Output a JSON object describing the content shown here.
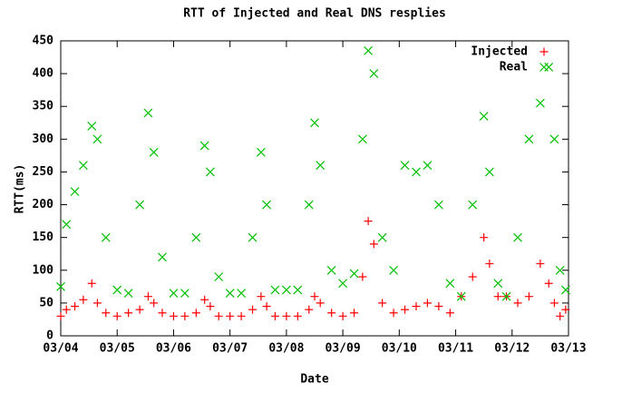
{
  "chart_data": {
    "type": "scatter",
    "title": "RTT of Injected and Real DNS resplies",
    "x_label": "Date",
    "y_label": "RTT(ms)",
    "x": [
      0,
      0.1,
      0.25,
      0.4,
      0.55,
      0.65,
      0.8,
      1.0,
      1.2,
      1.4,
      1.55,
      1.65,
      1.8,
      2.0,
      2.2,
      2.4,
      2.55,
      2.65,
      2.8,
      3.0,
      3.2,
      3.4,
      3.55,
      3.65,
      3.8,
      4.0,
      4.2,
      4.4,
      4.5,
      4.6,
      4.8,
      5.0,
      5.2,
      5.35,
      5.45,
      5.55,
      5.7,
      5.9,
      6.1,
      6.3,
      6.5,
      6.7,
      6.9,
      7.1,
      7.3,
      7.5,
      7.6,
      7.75,
      7.9,
      8.1,
      8.3,
      8.5,
      8.65,
      8.75,
      8.85,
      8.95
    ],
    "series": [
      {
        "name": "Injected",
        "color": "#ff0000",
        "marker": "plus",
        "values": [
          30,
          40,
          45,
          55,
          80,
          50,
          35,
          30,
          35,
          40,
          60,
          50,
          35,
          30,
          30,
          35,
          55,
          45,
          30,
          30,
          30,
          40,
          60,
          45,
          30,
          30,
          30,
          40,
          60,
          50,
          35,
          30,
          35,
          90,
          175,
          140,
          50,
          35,
          40,
          45,
          50,
          45,
          35,
          60,
          90,
          150,
          110,
          60,
          60,
          50,
          60,
          110,
          80,
          50,
          30,
          40
        ]
      },
      {
        "name": "Real",
        "color": "#00c000",
        "marker": "cross",
        "values": [
          75,
          170,
          220,
          260,
          320,
          300,
          150,
          70,
          65,
          200,
          340,
          280,
          120,
          65,
          65,
          150,
          290,
          250,
          90,
          65,
          65,
          150,
          280,
          200,
          70,
          70,
          70,
          200,
          325,
          260,
          100,
          80,
          95,
          300,
          435,
          400,
          150,
          100,
          260,
          250,
          260,
          200,
          80,
          60,
          200,
          335,
          250,
          80,
          60,
          150,
          300,
          355,
          410,
          300,
          100,
          70
        ]
      }
    ],
    "xlim": [
      0,
      9
    ],
    "xticks": [
      {
        "value": 0,
        "label": "03/04"
      },
      {
        "value": 1,
        "label": "03/05"
      },
      {
        "value": 2,
        "label": "03/06"
      },
      {
        "value": 3,
        "label": "03/07"
      },
      {
        "value": 4,
        "label": "03/08"
      },
      {
        "value": 5,
        "label": "03/09"
      },
      {
        "value": 6,
        "label": "03/10"
      },
      {
        "value": 7,
        "label": "03/11"
      },
      {
        "value": 8,
        "label": "03/12"
      },
      {
        "value": 9,
        "label": "03/13"
      }
    ],
    "ylim": [
      0,
      450
    ],
    "yticks": [
      0,
      50,
      100,
      150,
      200,
      250,
      300,
      350,
      400,
      450
    ],
    "legend": "top-right"
  }
}
